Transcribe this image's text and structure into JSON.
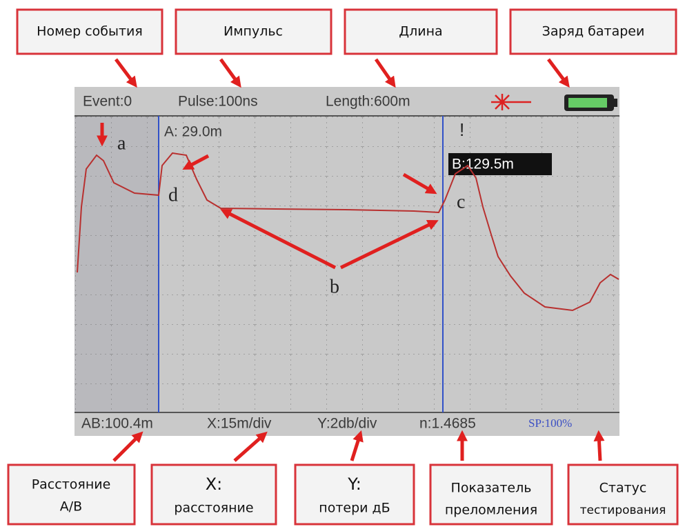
{
  "top_callouts": [
    {
      "lines": [
        "Номер события"
      ]
    },
    {
      "lines": [
        "Импульс"
      ]
    },
    {
      "lines": [
        "Длина"
      ]
    },
    {
      "lines": [
        "Заряд батареи"
      ]
    }
  ],
  "screen": {
    "header": {
      "event": "Event:0",
      "pulse": "Pulse:100ns",
      "length": "Length:600m"
    },
    "cursor_a": "A: 29.0m",
    "cursor_b": "B:129.5m",
    "event_letters": {
      "a": "a",
      "b": "b",
      "c": "c",
      "d": "d"
    },
    "footer": {
      "ab": "AB:100.4m",
      "x": "X:15m/div",
      "y": "Y:2db/div",
      "n": "n:1.4685",
      "sp": "SP:100%"
    }
  },
  "bottom_callouts": [
    {
      "lines": [
        "Расстояние",
        "А/В"
      ]
    },
    {
      "lines": [
        "X:",
        "расстояние"
      ]
    },
    {
      "lines": [
        "Y:",
        "потери дБ"
      ]
    },
    {
      "lines": [
        "Показатель",
        "преломления"
      ]
    },
    {
      "lines": [
        "Статус",
        "тестирования"
      ]
    }
  ]
}
